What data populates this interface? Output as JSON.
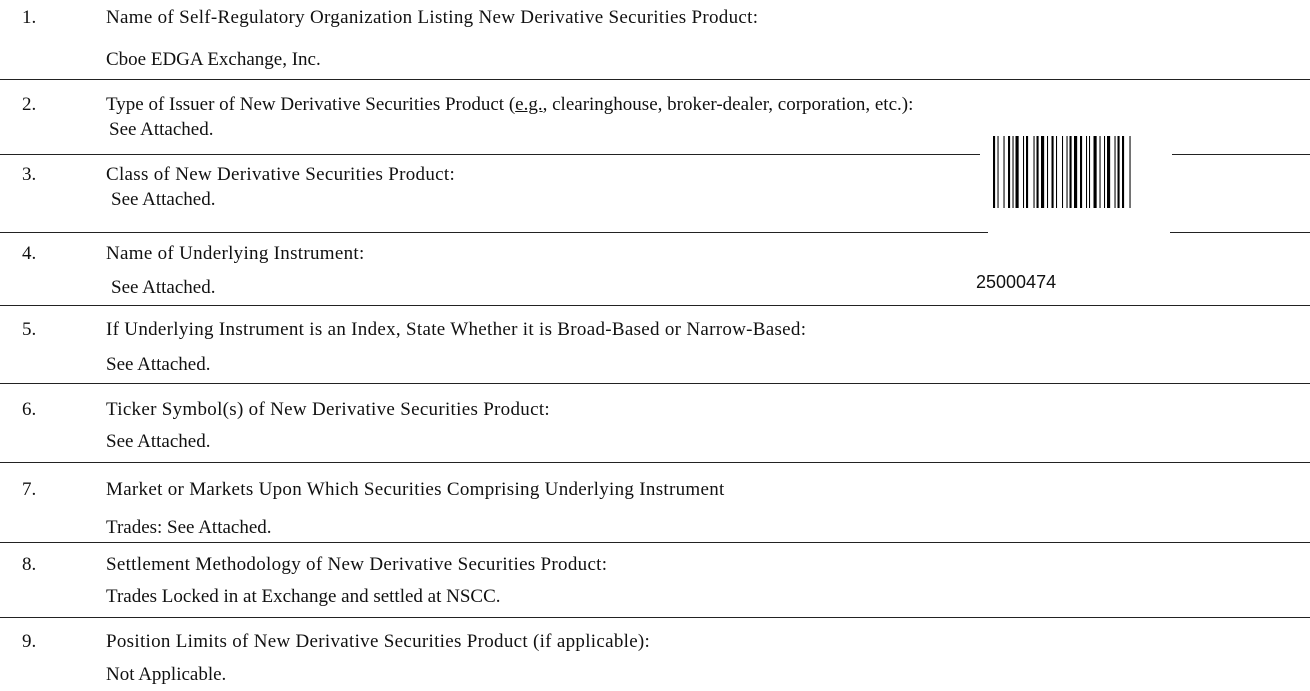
{
  "items": [
    {
      "number": "1.",
      "label": "Name of Self-Regulatory Organization Listing New Derivative Securities Product:",
      "answer": "Cboe EDGA Exchange, Inc."
    },
    {
      "number": "2.",
      "label": [
        "Type of Issuer of New Derivative Securities Product (",
        "e.g.",
        ", clearinghouse, broker-dealer, corporation, etc.):"
      ],
      "answer": "See Attached."
    },
    {
      "number": "3.",
      "label": "Class of New Derivative Securities Product:",
      "answer": "See Attached."
    },
    {
      "number": "4.",
      "label": "Name of Underlying Instrument:",
      "answer": "See Attached."
    },
    {
      "number": "5.",
      "label": "If Underlying Instrument is an Index, State Whether it is Broad-Based or Narrow-Based:",
      "answer": "See Attached."
    },
    {
      "number": "6.",
      "label": "Ticker Symbol(s) of New Derivative Securities Product:",
      "answer": "See Attached."
    },
    {
      "number": "7.",
      "label": "Market or Markets Upon Which Securities Comprising Underlying Instrument",
      "answer": "Trades: See Attached."
    },
    {
      "number": "8.",
      "label": "Settlement Methodology of New Derivative Securities Product:",
      "answer": "Trades Locked in at Exchange and settled at NSCC."
    },
    {
      "number": "9.",
      "label": "Position Limits of New Derivative Securities Product (if applicable):",
      "answer": "Not Applicable."
    }
  ],
  "barcode_number": "25000474"
}
